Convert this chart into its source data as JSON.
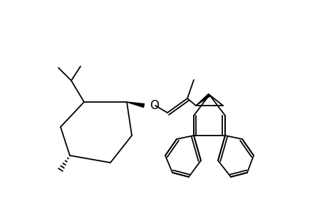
{
  "bg_color": "#ffffff",
  "line_color": "#000000",
  "line_width": 1.3,
  "figsize": [
    4.6,
    3.0
  ],
  "dpi": 100
}
